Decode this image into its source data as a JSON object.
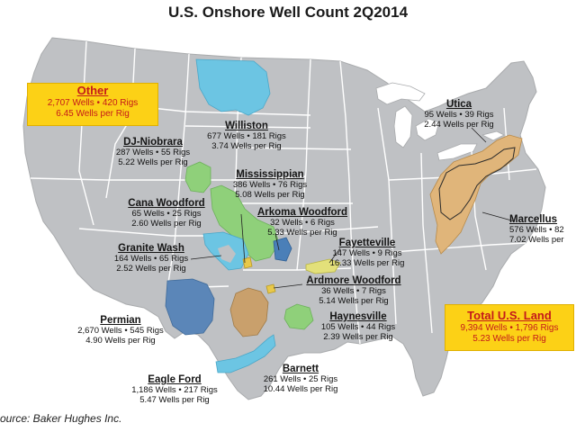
{
  "title": "U.S. Onshore Well Count 2Q2014",
  "source": "ource: Baker Hughes Inc.",
  "colors": {
    "land": "#bfc1c4",
    "state_lines": "#ffffff",
    "water": "#ffffff",
    "callout_fill": "#fcd116",
    "callout_text": "#c41a1a"
  },
  "callouts": {
    "other": {
      "name": "Other",
      "line1": "2,707 Wells  •  420 Rigs",
      "line2": "6.45 Wells per Rig"
    },
    "total": {
      "name": "Total U.S. Land",
      "line1": "9,394 Wells  •  1,796 Rigs",
      "line2": "5.23 Wells per Rig"
    }
  },
  "plays": {
    "williston": {
      "name": "Williston",
      "line1": "677 Wells • 181 Rigs",
      "line2": "3.74 Wells per Rig",
      "color": "#6cc5e3"
    },
    "dj_niobrara": {
      "name": "DJ-Niobrara",
      "line1": "287 Wells • 55 Rigs",
      "line2": "5.22 Wells per Rig",
      "color": "#8fd07a"
    },
    "mississippian": {
      "name": "Mississippian",
      "line1": "386 Wells • 76 Rigs",
      "line2": "5.08 Wells per Rig",
      "color": "#8fd07a"
    },
    "cana_woodford": {
      "name": "Cana Woodford",
      "line1": "65 Wells • 25 Rigs",
      "line2": "2.60 Wells per Rig",
      "color": "#e8c84a"
    },
    "arkoma_woodford": {
      "name": "Arkoma Woodford",
      "line1": "32 Wells • 6 Rigs",
      "line2": "5.33 Wells per Rig",
      "color": "#4a7fb8"
    },
    "granite_wash": {
      "name": "Granite Wash",
      "line1": "164 Wells • 65 Rigs",
      "line2": "2.52 Wells per Rig",
      "color": "#6cc5e3"
    },
    "fayetteville": {
      "name": "Fayetteville",
      "line1": "147 Wells • 9 Rigs",
      "line2": "16.33 Wells per Rig",
      "color": "#e3e07a"
    },
    "ardmore_woodford": {
      "name": "Ardmore Woodford",
      "line1": "36 Wells • 7 Rigs",
      "line2": "5.14 Wells per Rig",
      "color": "#e8c84a"
    },
    "permian": {
      "name": "Permian",
      "line1": "2,670 Wells • 545 Rigs",
      "line2": "4.90 Wells per Rig",
      "color": "#5b86b8"
    },
    "haynesville": {
      "name": "Haynesville",
      "line1": "105 Wells • 44 Rigs",
      "line2": "2.39 Wells per Rig",
      "color": "#8fd07a"
    },
    "barnett": {
      "name": "Barnett",
      "line1": "261 Wells • 25 Rigs",
      "line2": "10.44 Wells per Rig",
      "color": "#c9a06c"
    },
    "eagle_ford": {
      "name": "Eagle Ford",
      "line1": "1,186 Wells • 217 Rigs",
      "line2": "5.47 Wells per Rig",
      "color": "#6cc5e3"
    },
    "utica": {
      "name": "Utica",
      "line1": "95 Wells • 39 Rigs",
      "line2": "2.44 Wells per Rig",
      "color": "#e0b57a"
    },
    "marcellus": {
      "name": "Marcellus",
      "line1": "576 Wells • 82",
      "line2": "7.02 Wells per",
      "color": "#e0b57a"
    }
  }
}
